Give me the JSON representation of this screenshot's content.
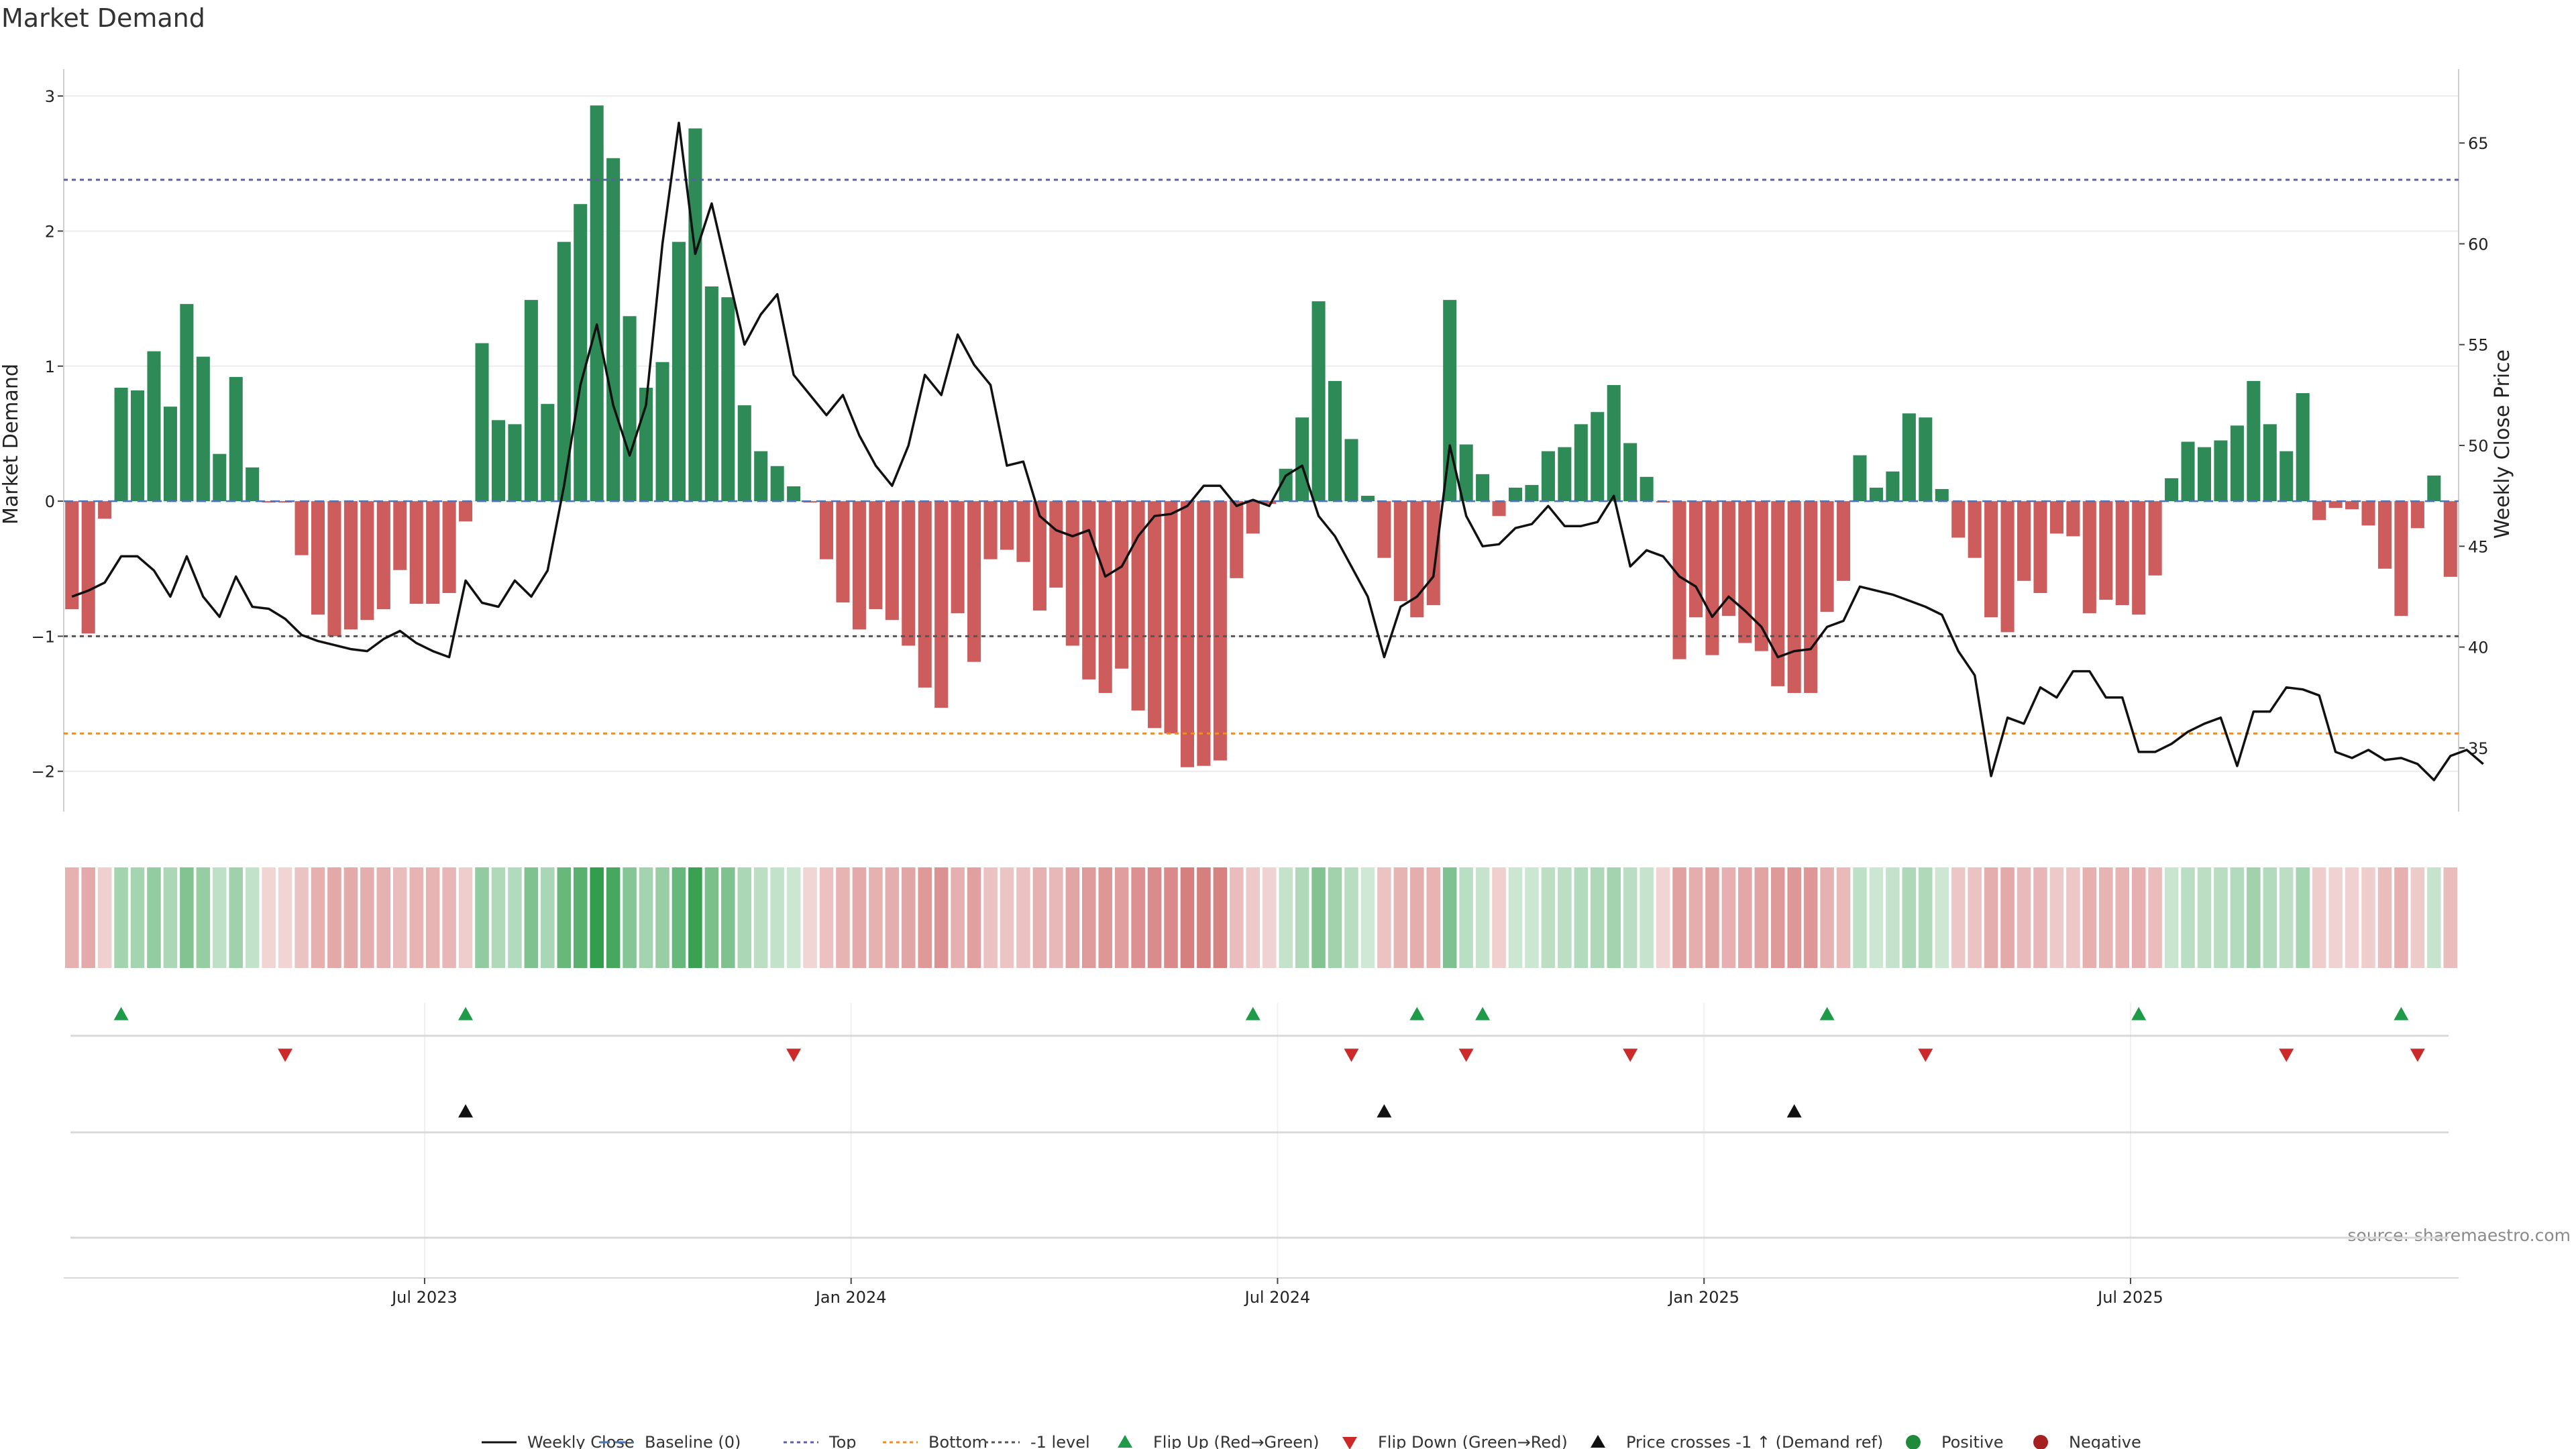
{
  "chart_data": {
    "type": "bar",
    "title": "Market Demand",
    "ylabel": "Market Demand",
    "y2label": "Weekly Close Price",
    "ylim": [
      -2.2,
      3.1
    ],
    "y2lim": [
      32.5,
      68.0
    ],
    "yticks": [
      "−2",
      "−1",
      "0",
      "1",
      "2",
      "3"
    ],
    "yticks_values": [
      -2,
      -1,
      0,
      1,
      2,
      3
    ],
    "y2ticks": [
      "35",
      "40",
      "45",
      "50",
      "55",
      "60",
      "65"
    ],
    "y2ticks_values": [
      35,
      40,
      45,
      50,
      55,
      60,
      65
    ],
    "date_ticks": [
      "Jul 2023",
      "Jan 2024",
      "Jul 2024",
      "Jan 2025",
      "Jul 2025"
    ],
    "date_tick_weeks": [
      22,
      48,
      74,
      100,
      126
    ],
    "reference_lines": [
      {
        "name": "Top",
        "value": 2.38,
        "color": "#5b5fa8"
      },
      {
        "name": "Bottom",
        "value": -1.72,
        "color": "#f08c28"
      },
      {
        "name": "-1 level",
        "value": -1.0,
        "color": "#555555"
      }
    ],
    "series": [
      {
        "name": "Market Demand",
        "values": [
          -0.8,
          -0.98,
          -0.13,
          0.84,
          0.82,
          1.11,
          0.7,
          1.46,
          1.07,
          0.35,
          0.92,
          0.25,
          -0.01,
          -0.01,
          -0.4,
          -0.84,
          -1.0,
          -0.95,
          -0.88,
          -0.8,
          -0.51,
          -0.76,
          -0.76,
          -0.68,
          -0.15,
          1.17,
          0.6,
          0.57,
          1.49,
          0.72,
          1.92,
          2.2,
          2.93,
          2.54,
          1.37,
          0.84,
          1.03,
          1.92,
          2.76,
          1.59,
          1.51,
          0.71,
          0.37,
          0.26,
          0.11,
          -0.01,
          -0.43,
          -0.75,
          -0.95,
          -0.8,
          -0.88,
          -1.07,
          -1.38,
          -1.53,
          -0.83,
          -1.19,
          -0.43,
          -0.36,
          -0.45,
          -0.81,
          -0.64,
          -1.07,
          -1.32,
          -1.42,
          -1.24,
          -1.55,
          -1.68,
          -1.72,
          -1.97,
          -1.96,
          -1.92,
          -0.57,
          -0.24,
          -0.02,
          0.24,
          0.62,
          1.48,
          0.89,
          0.46,
          0.04,
          -0.42,
          -0.74,
          -0.86,
          -0.77,
          1.49,
          0.42,
          0.2,
          -0.11,
          0.1,
          0.12,
          0.37,
          0.4,
          0.57,
          0.66,
          0.86,
          0.43,
          0.18,
          -0.01,
          -1.17,
          -0.86,
          -1.14,
          -0.85,
          -1.05,
          -1.11,
          -1.37,
          -1.42,
          -1.42,
          -0.82,
          -0.59,
          0.34,
          0.1,
          0.22,
          0.65,
          0.62,
          0.09,
          -0.27,
          -0.42,
          -0.86,
          -0.97,
          -0.59,
          -0.68,
          -0.24,
          -0.26,
          -0.83,
          -0.73,
          -0.77,
          -0.84,
          -0.55,
          0.17,
          0.44,
          0.4,
          0.45,
          0.56,
          0.89,
          0.57,
          0.37,
          0.8,
          -0.14,
          -0.05,
          -0.06,
          -0.18,
          -0.5,
          -0.85,
          -0.2,
          0.19,
          -0.56
        ]
      },
      {
        "name": "Weekly Close",
        "values": [
          42.5,
          42.8,
          43.2,
          44.5,
          44.5,
          43.8,
          42.5,
          44.5,
          42.5,
          41.5,
          43.5,
          42.0,
          41.9,
          41.4,
          40.6,
          40.3,
          40.1,
          39.9,
          39.8,
          40.4,
          40.8,
          40.2,
          39.8,
          39.5,
          43.3,
          42.2,
          42.0,
          43.3,
          42.5,
          43.8,
          48.0,
          53.0,
          56.0,
          52.0,
          49.5,
          52.0,
          60.0,
          66.0,
          59.5,
          62.0,
          58.5,
          55.0,
          56.5,
          57.5,
          53.5,
          52.5,
          51.5,
          52.5,
          50.5,
          49.0,
          48.0,
          50.0,
          53.5,
          52.5,
          55.5,
          54.0,
          53.0,
          49.0,
          49.2,
          46.5,
          45.8,
          45.5,
          45.8,
          43.5,
          44.0,
          45.5,
          46.5,
          46.6,
          47.0,
          48.0,
          48.0,
          47.0,
          47.3,
          47.0,
          48.5,
          49.0,
          46.5,
          45.5,
          44.0,
          42.5,
          39.5,
          42.0,
          42.5,
          43.5,
          50.0,
          46.5,
          45.0,
          45.1,
          45.9,
          46.1,
          47.0,
          46.0,
          46.0,
          46.2,
          47.5,
          44.0,
          44.8,
          44.5,
          43.5,
          43.0,
          41.5,
          42.5,
          41.8,
          41.0,
          39.5,
          39.8,
          39.9,
          41.0,
          41.3,
          43.0,
          42.8,
          42.6,
          42.3,
          42.0,
          41.6,
          39.8,
          38.6,
          33.6,
          36.5,
          36.2,
          38.0,
          37.5,
          38.8,
          38.8,
          37.5,
          37.5,
          34.8,
          34.8,
          35.2,
          35.8,
          36.2,
          36.5,
          34.1,
          36.8,
          36.8,
          38.0,
          37.9,
          37.6,
          34.8,
          34.5,
          34.9,
          34.4,
          34.5,
          34.2,
          33.4,
          34.6,
          34.9,
          34.2
        ]
      }
    ],
    "heat_strip_values": "same as Market Demand",
    "flip_up_weeks": [
      3,
      24,
      72,
      82,
      86,
      107,
      126,
      142
    ],
    "flip_down_weeks": [
      13,
      44,
      78,
      85,
      95,
      113,
      135,
      143
    ],
    "price_cross_weeks": [
      24,
      80,
      105
    ],
    "legend": [
      {
        "label": "Weekly Close",
        "style": "line",
        "color": "#111111"
      },
      {
        "label": "Baseline (0)",
        "style": "dashed",
        "color": "#4a76b5"
      },
      {
        "label": "Top",
        "style": "dotted",
        "color": "#5b5fa8"
      },
      {
        "label": "Bottom",
        "style": "dotted",
        "color": "#f08c28"
      },
      {
        "label": "-1 level",
        "style": "dotted",
        "color": "#555555"
      },
      {
        "label": "Flip Up (Red→Green)",
        "style": "triangle-up",
        "color": "#1f9a48"
      },
      {
        "label": "Flip Down (Green→Red)",
        "style": "triangle-down",
        "color": "#cc2a2a"
      },
      {
        "label": "Price crosses -1 ↑ (Demand ref)",
        "style": "triangle-up",
        "color": "#111111"
      },
      {
        "label": "Positive",
        "style": "circle",
        "color": "#1f8a3a"
      },
      {
        "label": "Negative",
        "style": "circle",
        "color": "#a52020"
      }
    ],
    "legend_placement": "bottom-center",
    "source": "source: sharemaestro.com",
    "colors": {
      "positive": "#2e8b57",
      "negative": "#cd5c5c"
    }
  }
}
